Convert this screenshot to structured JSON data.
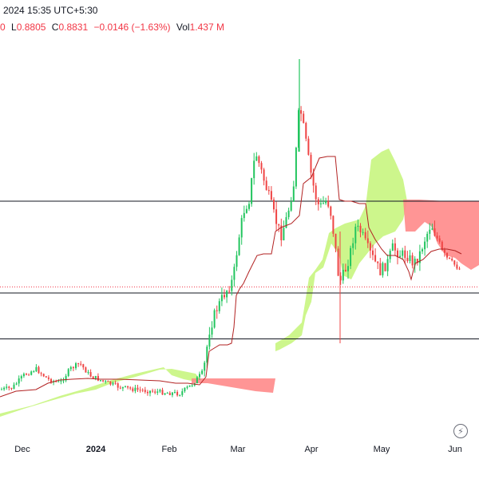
{
  "legend": {
    "datetime": "2024 15:35 UTC+5:30",
    "close_fragment": "0",
    "low_label": "L",
    "low_value": "0.8805",
    "close_label": "C",
    "close_value": "0.8831",
    "change": "−0.0146 (−1.63%)",
    "vol_label": "Vol",
    "vol_value": "1.437 M"
  },
  "icons": {
    "replay": "lightning-bolt-icon"
  },
  "colors": {
    "up": "#22c55e",
    "down": "#ef4444",
    "kijun": "#b22222",
    "cloud_bull": "#c8f580",
    "cloud_bear": "#ff8a8a",
    "hline": "#131722",
    "price_line": "#f23645"
  },
  "chart_data": {
    "type": "candlestick",
    "x_ticks": [
      "Dec",
      "2024",
      "Feb",
      "Mar",
      "Apr",
      "May",
      "Jun"
    ],
    "horizontal_levels": [
      1.35,
      0.85,
      0.6
    ],
    "current_price": 0.8831,
    "grid": false,
    "indicators": [
      "ichimoku-cloud",
      "kijun-sen"
    ]
  }
}
